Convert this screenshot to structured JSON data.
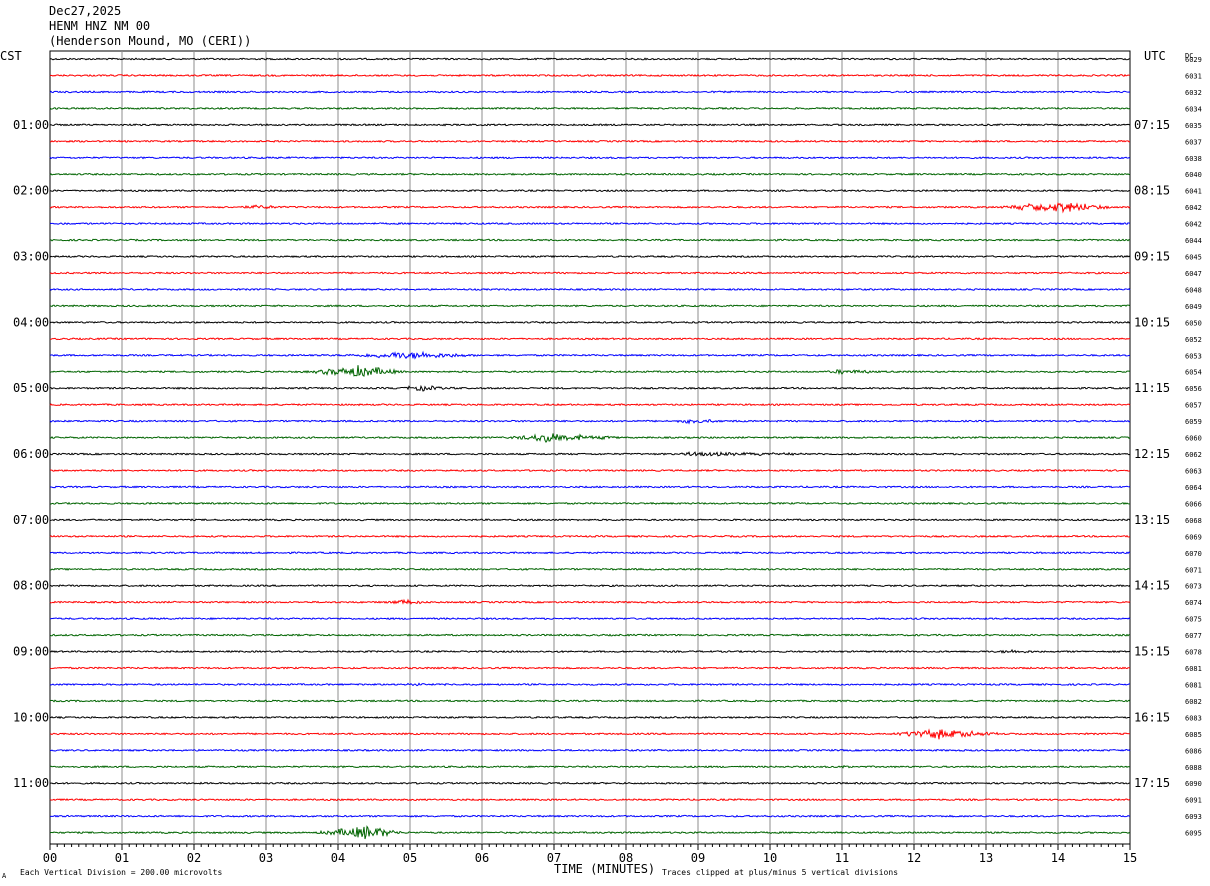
{
  "header": {
    "date": "Dec27,2025",
    "station": "HENM HNZ NM 00",
    "location": "(Henderson Mound, MO (CERI))"
  },
  "axes": {
    "left_label": "CST",
    "right_label": "UTC",
    "dc_label": "DC",
    "x_title": "TIME (MINUTES)",
    "scale_note": "Each Vertical Division =  200.00 microvolts",
    "clip_note": "Traces clipped at plus/minus 5 vertical divisions",
    "corner_mark": "A"
  },
  "chart_data": {
    "type": "line",
    "title": "HENM HNZ NM 00",
    "xlabel": "TIME (MINUTES)",
    "xlim": [
      0,
      15
    ],
    "x_ticks": [
      "00",
      "01",
      "02",
      "03",
      "04",
      "05",
      "06",
      "07",
      "08",
      "09",
      "10",
      "11",
      "12",
      "13",
      "14",
      "15"
    ],
    "trace_colors": [
      "#000000",
      "#ff0000",
      "#0000ff",
      "#006400"
    ],
    "grid": true,
    "left_time_labels": [
      {
        "row": 4,
        "label": "01:00"
      },
      {
        "row": 8,
        "label": "02:00"
      },
      {
        "row": 12,
        "label": "03:00"
      },
      {
        "row": 16,
        "label": "04:00"
      },
      {
        "row": 20,
        "label": "05:00"
      },
      {
        "row": 24,
        "label": "06:00"
      },
      {
        "row": 28,
        "label": "07:00"
      },
      {
        "row": 32,
        "label": "08:00"
      },
      {
        "row": 36,
        "label": "09:00"
      },
      {
        "row": 40,
        "label": "10:00"
      },
      {
        "row": 44,
        "label": "11:00"
      }
    ],
    "right_time_labels": [
      {
        "row": 4,
        "label": "07:15"
      },
      {
        "row": 8,
        "label": "08:15"
      },
      {
        "row": 12,
        "label": "09:15"
      },
      {
        "row": 16,
        "label": "10:15"
      },
      {
        "row": 20,
        "label": "11:15"
      },
      {
        "row": 24,
        "label": "12:15"
      },
      {
        "row": 28,
        "label": "13:15"
      },
      {
        "row": 32,
        "label": "14:15"
      },
      {
        "row": 36,
        "label": "15:15"
      },
      {
        "row": 40,
        "label": "16:15"
      },
      {
        "row": 44,
        "label": "17:15"
      }
    ],
    "dc_offsets": [
      "6029",
      "6031",
      "6032",
      "6034",
      "6035",
      "6037",
      "6038",
      "6040",
      "6041",
      "6042",
      "6042",
      "6044",
      "6045",
      "6047",
      "6048",
      "6049",
      "6050",
      "6052",
      "6053",
      "6054",
      "6056",
      "6057",
      "6059",
      "6060",
      "6062",
      "6063",
      "6064",
      "6066",
      "6068",
      "6069",
      "6070",
      "6071",
      "6073",
      "6074",
      "6075",
      "6077",
      "6078",
      "6081",
      "6081",
      "6082",
      "6083",
      "6085",
      "6086",
      "6088",
      "6090",
      "6091",
      "6093",
      "6095"
    ],
    "events": [
      {
        "row": 3,
        "start_min": 13.2,
        "end_min": 13.4,
        "peak_min": 13.3,
        "amp_div": 0.5
      },
      {
        "row": 6,
        "start_min": 3.2,
        "end_min": 3.4,
        "peak_min": 3.3,
        "amp_div": 0.6
      },
      {
        "row": 9,
        "start_min": 2.4,
        "end_min": 3.5,
        "peak_min": 2.9,
        "amp_div": 1.0
      },
      {
        "row": 9,
        "start_min": 13.0,
        "end_min": 14.9,
        "peak_min": 14.0,
        "amp_div": 2.6
      },
      {
        "row": 10,
        "start_min": 0.0,
        "end_min": 1.0,
        "peak_min": 0.2,
        "amp_div": 0.3
      },
      {
        "row": 18,
        "start_min": 3.8,
        "end_min": 6.2,
        "peak_min": 5.0,
        "amp_div": 1.8
      },
      {
        "row": 19,
        "start_min": 3.5,
        "end_min": 5.0,
        "peak_min": 4.3,
        "amp_div": 3.0
      },
      {
        "row": 19,
        "start_min": 10.7,
        "end_min": 11.8,
        "peak_min": 11.0,
        "amp_div": 1.2
      },
      {
        "row": 20,
        "start_min": 4.8,
        "end_min": 5.8,
        "peak_min": 5.1,
        "amp_div": 1.4
      },
      {
        "row": 22,
        "start_min": 8.6,
        "end_min": 9.6,
        "peak_min": 8.9,
        "amp_div": 1.2
      },
      {
        "row": 23,
        "start_min": 6.2,
        "end_min": 8.2,
        "peak_min": 6.9,
        "amp_div": 2.0
      },
      {
        "row": 24,
        "start_min": 8.6,
        "end_min": 11.8,
        "peak_min": 8.9,
        "amp_div": 1.0
      },
      {
        "row": 33,
        "start_min": 4.5,
        "end_min": 5.4,
        "peak_min": 4.9,
        "amp_div": 1.3
      },
      {
        "row": 36,
        "start_min": 12.8,
        "end_min": 14.0,
        "peak_min": 13.4,
        "amp_div": 0.9
      },
      {
        "row": 38,
        "start_min": 4.0,
        "end_min": 6.5,
        "peak_min": 5.0,
        "amp_div": 0.6
      },
      {
        "row": 40,
        "start_min": 8.6,
        "end_min": 8.8,
        "peak_min": 8.7,
        "amp_div": 0.9
      },
      {
        "row": 41,
        "start_min": 11.5,
        "end_min": 13.4,
        "peak_min": 12.3,
        "amp_div": 2.4
      },
      {
        "row": 43,
        "start_min": 10.9,
        "end_min": 11.2,
        "peak_min": 11.0,
        "amp_div": 0.8
      },
      {
        "row": 47,
        "start_min": 3.6,
        "end_min": 5.0,
        "peak_min": 4.4,
        "amp_div": 3.2
      }
    ]
  }
}
